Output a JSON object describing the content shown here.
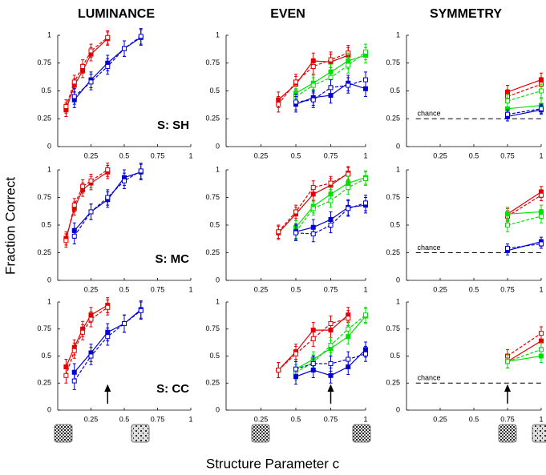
{
  "figure": {
    "ylabel": "Fraction Correct",
    "xlabel": "Structure Parameter c"
  },
  "chart_data": [
    {
      "type": "line",
      "title": "LUMINANCE",
      "subject": "S: SH",
      "xlim": [
        0,
        1
      ],
      "ylim": [
        0,
        1
      ],
      "xticks": [
        0.25,
        0.5,
        0.75,
        1
      ],
      "yticks": [
        0,
        0.25,
        0.5,
        0.75,
        1
      ],
      "series": [
        {
          "color": "#e00000",
          "dashed": false,
          "x": [
            0.0625,
            0.125,
            0.1875,
            0.25,
            0.375
          ],
          "values": [
            0.33,
            0.55,
            0.68,
            0.83,
            0.97
          ],
          "error": 0.06
        },
        {
          "color": "#e00000",
          "dashed": true,
          "x": [
            0.0625,
            0.125,
            0.1875,
            0.25,
            0.375
          ],
          "values": [
            0.36,
            0.58,
            0.72,
            0.86,
            0.98
          ],
          "error": 0.06
        },
        {
          "color": "#0000d0",
          "dashed": false,
          "x": [
            0.125,
            0.25,
            0.375,
            0.5,
            0.625
          ],
          "values": [
            0.42,
            0.6,
            0.75,
            0.88,
            0.98
          ],
          "error": 0.07
        },
        {
          "color": "#0000d0",
          "dashed": true,
          "x": [
            0.125,
            0.25,
            0.375,
            0.5,
            0.625
          ],
          "values": [
            0.45,
            0.58,
            0.72,
            0.88,
            0.99
          ],
          "error": 0.07
        }
      ]
    },
    {
      "type": "line",
      "title": "EVEN",
      "xlim": [
        0,
        1
      ],
      "ylim": [
        0,
        1
      ],
      "xticks": [
        0.25,
        0.5,
        0.75,
        1
      ],
      "yticks": [
        0,
        0.25,
        0.5,
        0.75,
        1
      ],
      "series": [
        {
          "color": "#e00000",
          "dashed": false,
          "x": [
            0.375,
            0.5,
            0.625,
            0.75,
            0.875
          ],
          "values": [
            0.42,
            0.56,
            0.77,
            0.76,
            0.82
          ],
          "error": 0.07
        },
        {
          "color": "#e00000",
          "dashed": true,
          "x": [
            0.375,
            0.5,
            0.625,
            0.75,
            0.875
          ],
          "values": [
            0.38,
            0.58,
            0.72,
            0.78,
            0.84
          ],
          "error": 0.07
        },
        {
          "color": "#00e000",
          "dashed": false,
          "x": [
            0.5,
            0.625,
            0.75,
            0.875,
            1
          ],
          "values": [
            0.48,
            0.57,
            0.67,
            0.77,
            0.82
          ],
          "error": 0.07
        },
        {
          "color": "#00e000",
          "dashed": true,
          "x": [
            0.5,
            0.625,
            0.75,
            0.875,
            1
          ],
          "values": [
            0.45,
            0.55,
            0.62,
            0.73,
            0.85
          ],
          "error": 0.07
        },
        {
          "color": "#0000d0",
          "dashed": false,
          "x": [
            0.5,
            0.625,
            0.75,
            0.875,
            1
          ],
          "values": [
            0.38,
            0.44,
            0.46,
            0.57,
            0.52
          ],
          "error": 0.07
        },
        {
          "color": "#0000d0",
          "dashed": true,
          "x": [
            0.5,
            0.625,
            0.75,
            0.875,
            1
          ],
          "values": [
            0.4,
            0.42,
            0.53,
            0.55,
            0.6
          ],
          "error": 0.07
        }
      ]
    },
    {
      "type": "line",
      "title": "SYMMETRY",
      "chance": {
        "value": 0.25,
        "label": "chance"
      },
      "xlim": [
        0,
        1
      ],
      "ylim": [
        0,
        1
      ],
      "xticks": [
        0.25,
        0.5,
        0.75,
        1
      ],
      "yticks": [
        0,
        0.25,
        0.5,
        0.75,
        1
      ],
      "series": [
        {
          "color": "#e00000",
          "dashed": false,
          "x": [
            0.75,
            1
          ],
          "values": [
            0.49,
            0.6
          ],
          "error": 0.06
        },
        {
          "color": "#e00000",
          "dashed": true,
          "x": [
            0.75,
            1
          ],
          "values": [
            0.45,
            0.56
          ],
          "error": 0.06
        },
        {
          "color": "#00e000",
          "dashed": false,
          "x": [
            0.75,
            1
          ],
          "values": [
            0.34,
            0.37
          ],
          "error": 0.06
        },
        {
          "color": "#00e000",
          "dashed": true,
          "x": [
            0.75,
            1
          ],
          "values": [
            0.41,
            0.5
          ],
          "error": 0.06
        },
        {
          "color": "#0000d0",
          "dashed": false,
          "x": [
            0.75,
            1
          ],
          "values": [
            0.27,
            0.33
          ],
          "error": 0.04
        },
        {
          "color": "#0000d0",
          "dashed": true,
          "x": [
            0.75,
            1
          ],
          "values": [
            0.29,
            0.34
          ],
          "error": 0.04
        }
      ]
    },
    {
      "type": "line",
      "subject": "S: MC",
      "xlim": [
        0,
        1
      ],
      "ylim": [
        0,
        1
      ],
      "xticks": [
        0.25,
        0.5,
        0.75,
        1
      ],
      "yticks": [
        0,
        0.25,
        0.5,
        0.75,
        1
      ],
      "series": [
        {
          "color": "#e00000",
          "dashed": false,
          "x": [
            0.0625,
            0.125,
            0.1875,
            0.25,
            0.375
          ],
          "values": [
            0.38,
            0.65,
            0.82,
            0.88,
            0.98
          ],
          "error": 0.06
        },
        {
          "color": "#e00000",
          "dashed": true,
          "x": [
            0.0625,
            0.125,
            0.1875,
            0.25,
            0.375
          ],
          "values": [
            0.36,
            0.68,
            0.85,
            0.9,
            1
          ],
          "error": 0.06
        },
        {
          "color": "#0000d0",
          "dashed": false,
          "x": [
            0.125,
            0.25,
            0.375,
            0.5,
            0.625
          ],
          "values": [
            0.45,
            0.62,
            0.73,
            0.93,
            0.98
          ],
          "error": 0.07
        },
        {
          "color": "#0000d0",
          "dashed": true,
          "x": [
            0.125,
            0.25,
            0.375,
            0.5,
            0.625
          ],
          "values": [
            0.4,
            0.62,
            0.75,
            0.9,
            0.99
          ],
          "error": 0.07
        }
      ]
    },
    {
      "type": "line",
      "xlim": [
        0,
        1
      ],
      "ylim": [
        0,
        1
      ],
      "xticks": [
        0.25,
        0.5,
        0.75,
        1
      ],
      "yticks": [
        0,
        0.25,
        0.5,
        0.75,
        1
      ],
      "series": [
        {
          "color": "#e00000",
          "dashed": false,
          "x": [
            0.375,
            0.5,
            0.625,
            0.75,
            0.875
          ],
          "values": [
            0.43,
            0.6,
            0.78,
            0.86,
            0.97
          ],
          "error": 0.06
        },
        {
          "color": "#e00000",
          "dashed": true,
          "x": [
            0.375,
            0.5,
            0.625,
            0.75,
            0.875
          ],
          "values": [
            0.44,
            0.62,
            0.84,
            0.88,
            0.96
          ],
          "error": 0.06
        },
        {
          "color": "#00e000",
          "dashed": false,
          "x": [
            0.5,
            0.625,
            0.75,
            0.875,
            1
          ],
          "values": [
            0.48,
            0.67,
            0.78,
            0.88,
            0.93
          ],
          "error": 0.06
        },
        {
          "color": "#00e000",
          "dashed": true,
          "x": [
            0.5,
            0.625,
            0.75,
            0.875,
            1
          ],
          "values": [
            0.44,
            0.65,
            0.72,
            0.84,
            0.92
          ],
          "error": 0.06
        },
        {
          "color": "#0000d0",
          "dashed": false,
          "x": [
            0.5,
            0.625,
            0.75,
            0.875,
            1
          ],
          "values": [
            0.44,
            0.48,
            0.55,
            0.66,
            0.68
          ],
          "error": 0.07
        },
        {
          "color": "#0000d0",
          "dashed": true,
          "x": [
            0.5,
            0.625,
            0.75,
            0.875,
            1
          ],
          "values": [
            0.43,
            0.42,
            0.5,
            0.65,
            0.7
          ],
          "error": 0.07
        }
      ]
    },
    {
      "type": "line",
      "chance": {
        "value": 0.25,
        "label": "chance"
      },
      "xlim": [
        0,
        1
      ],
      "ylim": [
        0,
        1
      ],
      "xticks": [
        0.25,
        0.5,
        0.75,
        1
      ],
      "yticks": [
        0,
        0.25,
        0.5,
        0.75,
        1
      ],
      "series": [
        {
          "color": "#e00000",
          "dashed": false,
          "x": [
            0.75,
            1
          ],
          "values": [
            0.6,
            0.8
          ],
          "error": 0.05
        },
        {
          "color": "#e00000",
          "dashed": true,
          "x": [
            0.75,
            1
          ],
          "values": [
            0.58,
            0.77
          ],
          "error": 0.05
        },
        {
          "color": "#00e000",
          "dashed": false,
          "x": [
            0.75,
            1
          ],
          "values": [
            0.6,
            0.62
          ],
          "error": 0.06
        },
        {
          "color": "#00e000",
          "dashed": true,
          "x": [
            0.75,
            1
          ],
          "values": [
            0.5,
            0.58
          ],
          "error": 0.06
        },
        {
          "color": "#0000d0",
          "dashed": false,
          "x": [
            0.75,
            1
          ],
          "values": [
            0.27,
            0.35
          ],
          "error": 0.04
        },
        {
          "color": "#0000d0",
          "dashed": true,
          "x": [
            0.75,
            1
          ],
          "values": [
            0.29,
            0.33
          ],
          "error": 0.04
        }
      ]
    },
    {
      "type": "line",
      "subject": "S: CC",
      "arrow_x": 0.375,
      "xlim": [
        0,
        1
      ],
      "ylim": [
        0,
        1
      ],
      "xticks": [
        0.25,
        0.5,
        0.75,
        1
      ],
      "yticks": [
        0,
        0.25,
        0.5,
        0.75,
        1
      ],
      "series": [
        {
          "color": "#e00000",
          "dashed": false,
          "x": [
            0.0625,
            0.125,
            0.1875,
            0.25,
            0.375
          ],
          "values": [
            0.4,
            0.58,
            0.75,
            0.88,
            0.97
          ],
          "error": 0.07
        },
        {
          "color": "#e00000",
          "dashed": true,
          "x": [
            0.0625,
            0.125,
            0.1875,
            0.25,
            0.375
          ],
          "values": [
            0.32,
            0.55,
            0.72,
            0.84,
            0.95
          ],
          "error": 0.07
        },
        {
          "color": "#0000d0",
          "dashed": false,
          "x": [
            0.125,
            0.25,
            0.375,
            0.5,
            0.625
          ],
          "values": [
            0.35,
            0.53,
            0.72,
            0.8,
            0.93
          ],
          "error": 0.08
        },
        {
          "color": "#0000d0",
          "dashed": true,
          "x": [
            0.125,
            0.25,
            0.375,
            0.5,
            0.625
          ],
          "values": [
            0.27,
            0.5,
            0.68,
            0.8,
            0.92
          ],
          "error": 0.08
        }
      ]
    },
    {
      "type": "line",
      "arrow_x": 0.75,
      "xlim": [
        0,
        1
      ],
      "ylim": [
        0,
        1
      ],
      "xticks": [
        0.25,
        0.5,
        0.75,
        1
      ],
      "yticks": [
        0,
        0.25,
        0.5,
        0.75,
        1
      ],
      "series": [
        {
          "color": "#e00000",
          "dashed": false,
          "x": [
            0.375,
            0.5,
            0.625,
            0.75,
            0.875
          ],
          "values": [
            0.37,
            0.54,
            0.74,
            0.74,
            0.88
          ],
          "error": 0.07
        },
        {
          "color": "#e00000",
          "dashed": true,
          "x": [
            0.375,
            0.5,
            0.625,
            0.75,
            0.875
          ],
          "values": [
            0.37,
            0.52,
            0.66,
            0.8,
            0.85
          ],
          "error": 0.07
        },
        {
          "color": "#00e000",
          "dashed": false,
          "x": [
            0.5,
            0.625,
            0.75,
            0.875,
            1
          ],
          "values": [
            0.38,
            0.47,
            0.57,
            0.68,
            0.87
          ],
          "error": 0.07
        },
        {
          "color": "#00e000",
          "dashed": true,
          "x": [
            0.5,
            0.625,
            0.75,
            0.875,
            1
          ],
          "values": [
            0.35,
            0.44,
            0.6,
            0.75,
            0.88
          ],
          "error": 0.07
        },
        {
          "color": "#0000d0",
          "dashed": false,
          "x": [
            0.5,
            0.625,
            0.75,
            0.875,
            1
          ],
          "values": [
            0.31,
            0.37,
            0.32,
            0.4,
            0.56
          ],
          "error": 0.07
        },
        {
          "color": "#0000d0",
          "dashed": true,
          "x": [
            0.5,
            0.625,
            0.75,
            0.875,
            1
          ],
          "values": [
            0.38,
            0.43,
            0.43,
            0.47,
            0.52
          ],
          "error": 0.07
        }
      ]
    },
    {
      "type": "line",
      "arrow_x": 0.75,
      "chance": {
        "value": 0.25,
        "label": "chance"
      },
      "xlim": [
        0,
        1
      ],
      "ylim": [
        0,
        1
      ],
      "xticks": [
        0.25,
        0.5,
        0.75,
        1
      ],
      "yticks": [
        0,
        0.25,
        0.5,
        0.75,
        1
      ],
      "series": [
        {
          "color": "#e00000",
          "dashed": false,
          "x": [
            0.75,
            1
          ],
          "values": [
            0.45,
            0.64
          ],
          "error": 0.06
        },
        {
          "color": "#e00000",
          "dashed": true,
          "x": [
            0.75,
            1
          ],
          "values": [
            0.5,
            0.71
          ],
          "error": 0.06
        },
        {
          "color": "#00e000",
          "dashed": false,
          "x": [
            0.75,
            1
          ],
          "values": [
            0.45,
            0.5
          ],
          "error": 0.06
        },
        {
          "color": "#00e000",
          "dashed": true,
          "x": [
            0.75,
            1
          ],
          "values": [
            0.45,
            0.56
          ],
          "error": 0.06
        }
      ]
    }
  ]
}
